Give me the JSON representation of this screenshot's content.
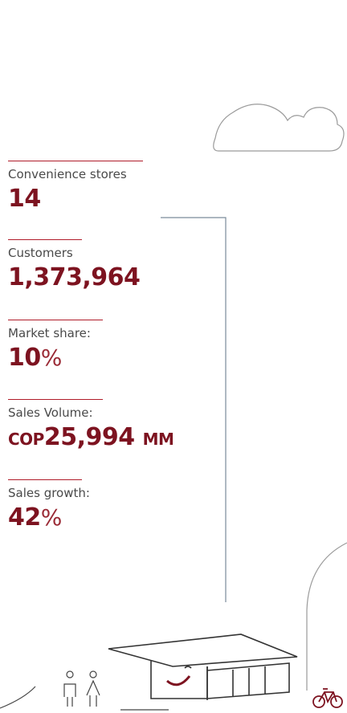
{
  "stats": [
    {
      "label": "Convenience stores",
      "value": "14"
    },
    {
      "label": "Customers",
      "value": "1,373,964"
    },
    {
      "label": "Market share:",
      "value": "10",
      "unit": "%"
    },
    {
      "label": "Sales Volume:",
      "prefix": "COP",
      "value": "25,994",
      "suffix": "MM"
    },
    {
      "label": "Sales growth:",
      "value": "42",
      "unit": "%"
    }
  ]
}
